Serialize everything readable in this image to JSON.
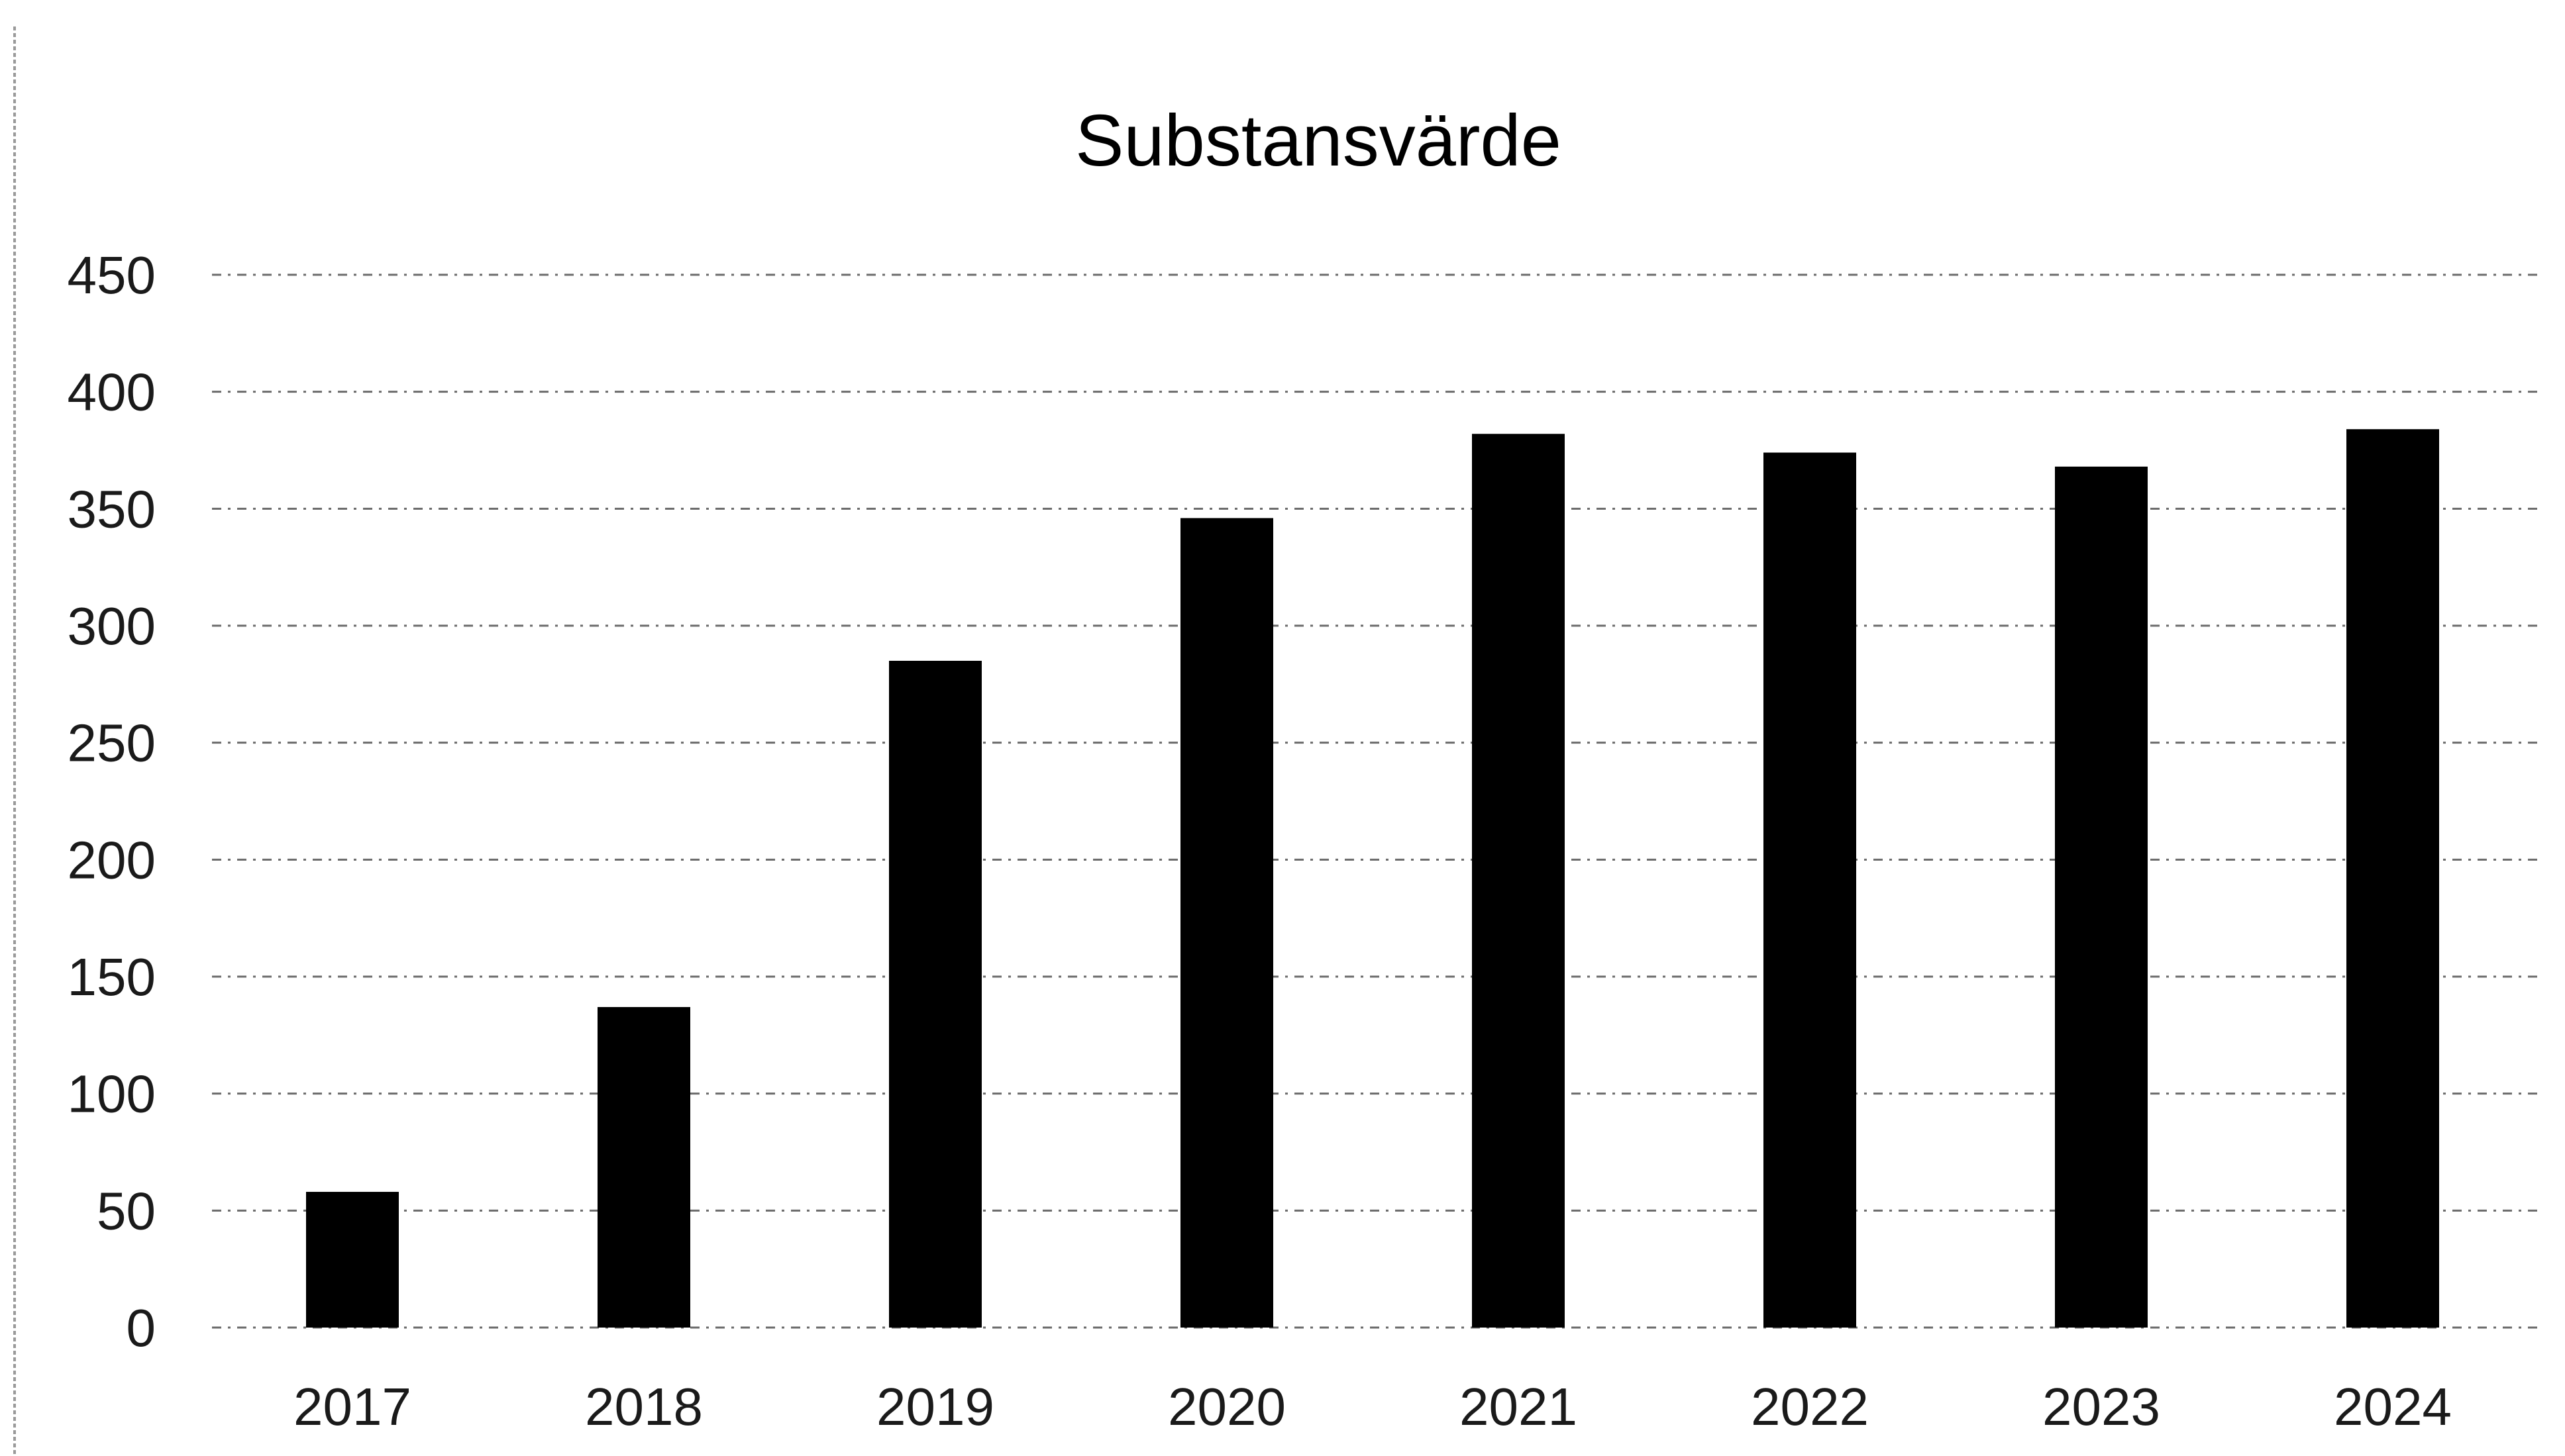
{
  "chart_data": {
    "type": "bar",
    "title": "Substansvärde",
    "categories": [
      "2017",
      "2018",
      "2019",
      "2020",
      "2021",
      "2022",
      "2023",
      "2024"
    ],
    "values": [
      58,
      137,
      285,
      346,
      382,
      374,
      368,
      384
    ],
    "ylim": [
      0,
      450
    ],
    "yticks": [
      "0",
      "50",
      "100",
      "150",
      "200",
      "250",
      "300",
      "350",
      "400",
      "450"
    ],
    "xlabel": "",
    "ylabel": "",
    "grid": true,
    "legend": "none",
    "bar_color": "#000000"
  }
}
